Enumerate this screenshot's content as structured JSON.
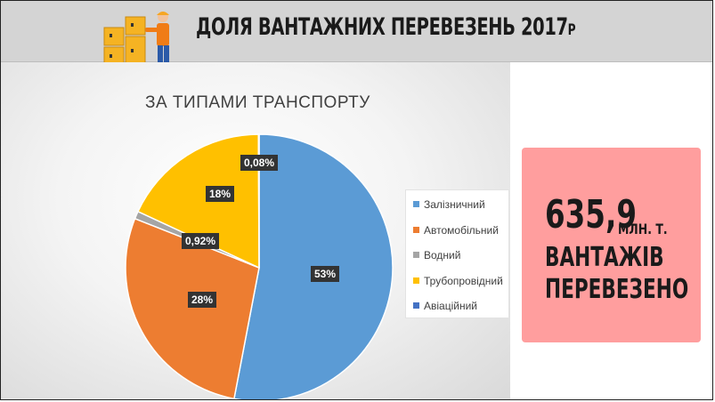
{
  "header": {
    "title_main": "ДОЛЯ ВАНТАЖНИХ ПЕРЕВЕЗЕНЬ 2017",
    "title_suffix": "Р",
    "icon": "warehouse-worker-boxes-icon",
    "background": "#d4d4d4"
  },
  "chart_data": {
    "type": "pie",
    "title": "ЗА ТИПАМИ ТРАНСПОРТУ",
    "legend_position": "right",
    "slices": [
      {
        "name": "Залізничний",
        "value": 53,
        "label": "53%",
        "color": "#5b9bd5"
      },
      {
        "name": "Автомобільний",
        "value": 28,
        "label": "28%",
        "color": "#ed7d31"
      },
      {
        "name": "Водний",
        "value": 0.92,
        "label": "0,92%",
        "color": "#a5a5a5"
      },
      {
        "name": "Трубопровідний",
        "value": 18,
        "label": "18%",
        "color": "#ffc000"
      },
      {
        "name": "Авіаційний",
        "value": 0.08,
        "label": "0,08%",
        "color": "#4472c4"
      }
    ]
  },
  "stat_box": {
    "value": "635,9",
    "unit": "МЛН. Т.",
    "line2": "ВАНТАЖІВ",
    "line3": "ПЕРЕВЕЗЕНО",
    "background": "#ff9e9e"
  }
}
